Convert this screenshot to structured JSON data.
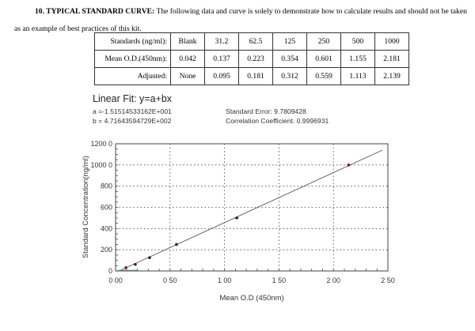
{
  "heading": {
    "section": "10. TYPICAL STANDARD CURVE:",
    "text": "The following data and curve is solely to demonstrate how to calculate results and should not be taken as an example of best practices of this kit."
  },
  "table": {
    "rows": [
      {
        "label": "Standards (ng/ml):",
        "cells": [
          "Blank",
          "31.2",
          "62.5",
          "125",
          "250",
          "500",
          "1000"
        ]
      },
      {
        "label": "Mean O.D.(450nm):",
        "cells": [
          "0.042",
          "0.137",
          "0.223",
          "0.354",
          "0.601",
          "1.155",
          "2.181"
        ]
      },
      {
        "label": "Adjusted:",
        "cells": [
          "None",
          "0.095",
          "0.181",
          "0.312",
          "0.559",
          "1.113",
          "2.139"
        ]
      }
    ]
  },
  "fit": {
    "title": "Linear Fit: y=a+bx",
    "a": "a =-1.51514533162E+001",
    "b": "b = 4.71643594729E+002",
    "std_error": "Standard Error: 9.7809428",
    "correlation": "Correlation Coefficient: 0.9996931"
  },
  "chart_data": {
    "type": "scatter",
    "title": "Linear Fit: y=a+bx",
    "xlabel": "Mean O.D (450nm)",
    "ylabel": "Standard Concentration(ng/ml)",
    "xlim": [
      0,
      2.5
    ],
    "ylim": [
      0,
      1200
    ],
    "x_ticks": [
      "0.00",
      "0.50",
      "1.00",
      "1.50",
      "2.00",
      "2.50"
    ],
    "y_ticks": [
      "0",
      "200",
      "400",
      "600",
      "800",
      "1000",
      "1200"
    ],
    "grid": true,
    "series": [
      {
        "name": "Standards",
        "x": [
          0.095,
          0.181,
          0.312,
          0.559,
          1.113,
          2.139
        ],
        "y": [
          31.2,
          62.5,
          125,
          250,
          500,
          1000
        ]
      },
      {
        "name": "Linear fit",
        "x": [
          0.032,
          2.45
        ],
        "y": [
          0,
          1140.4
        ],
        "intercept": -15.1514533162,
        "slope": 471.643594729
      }
    ]
  }
}
